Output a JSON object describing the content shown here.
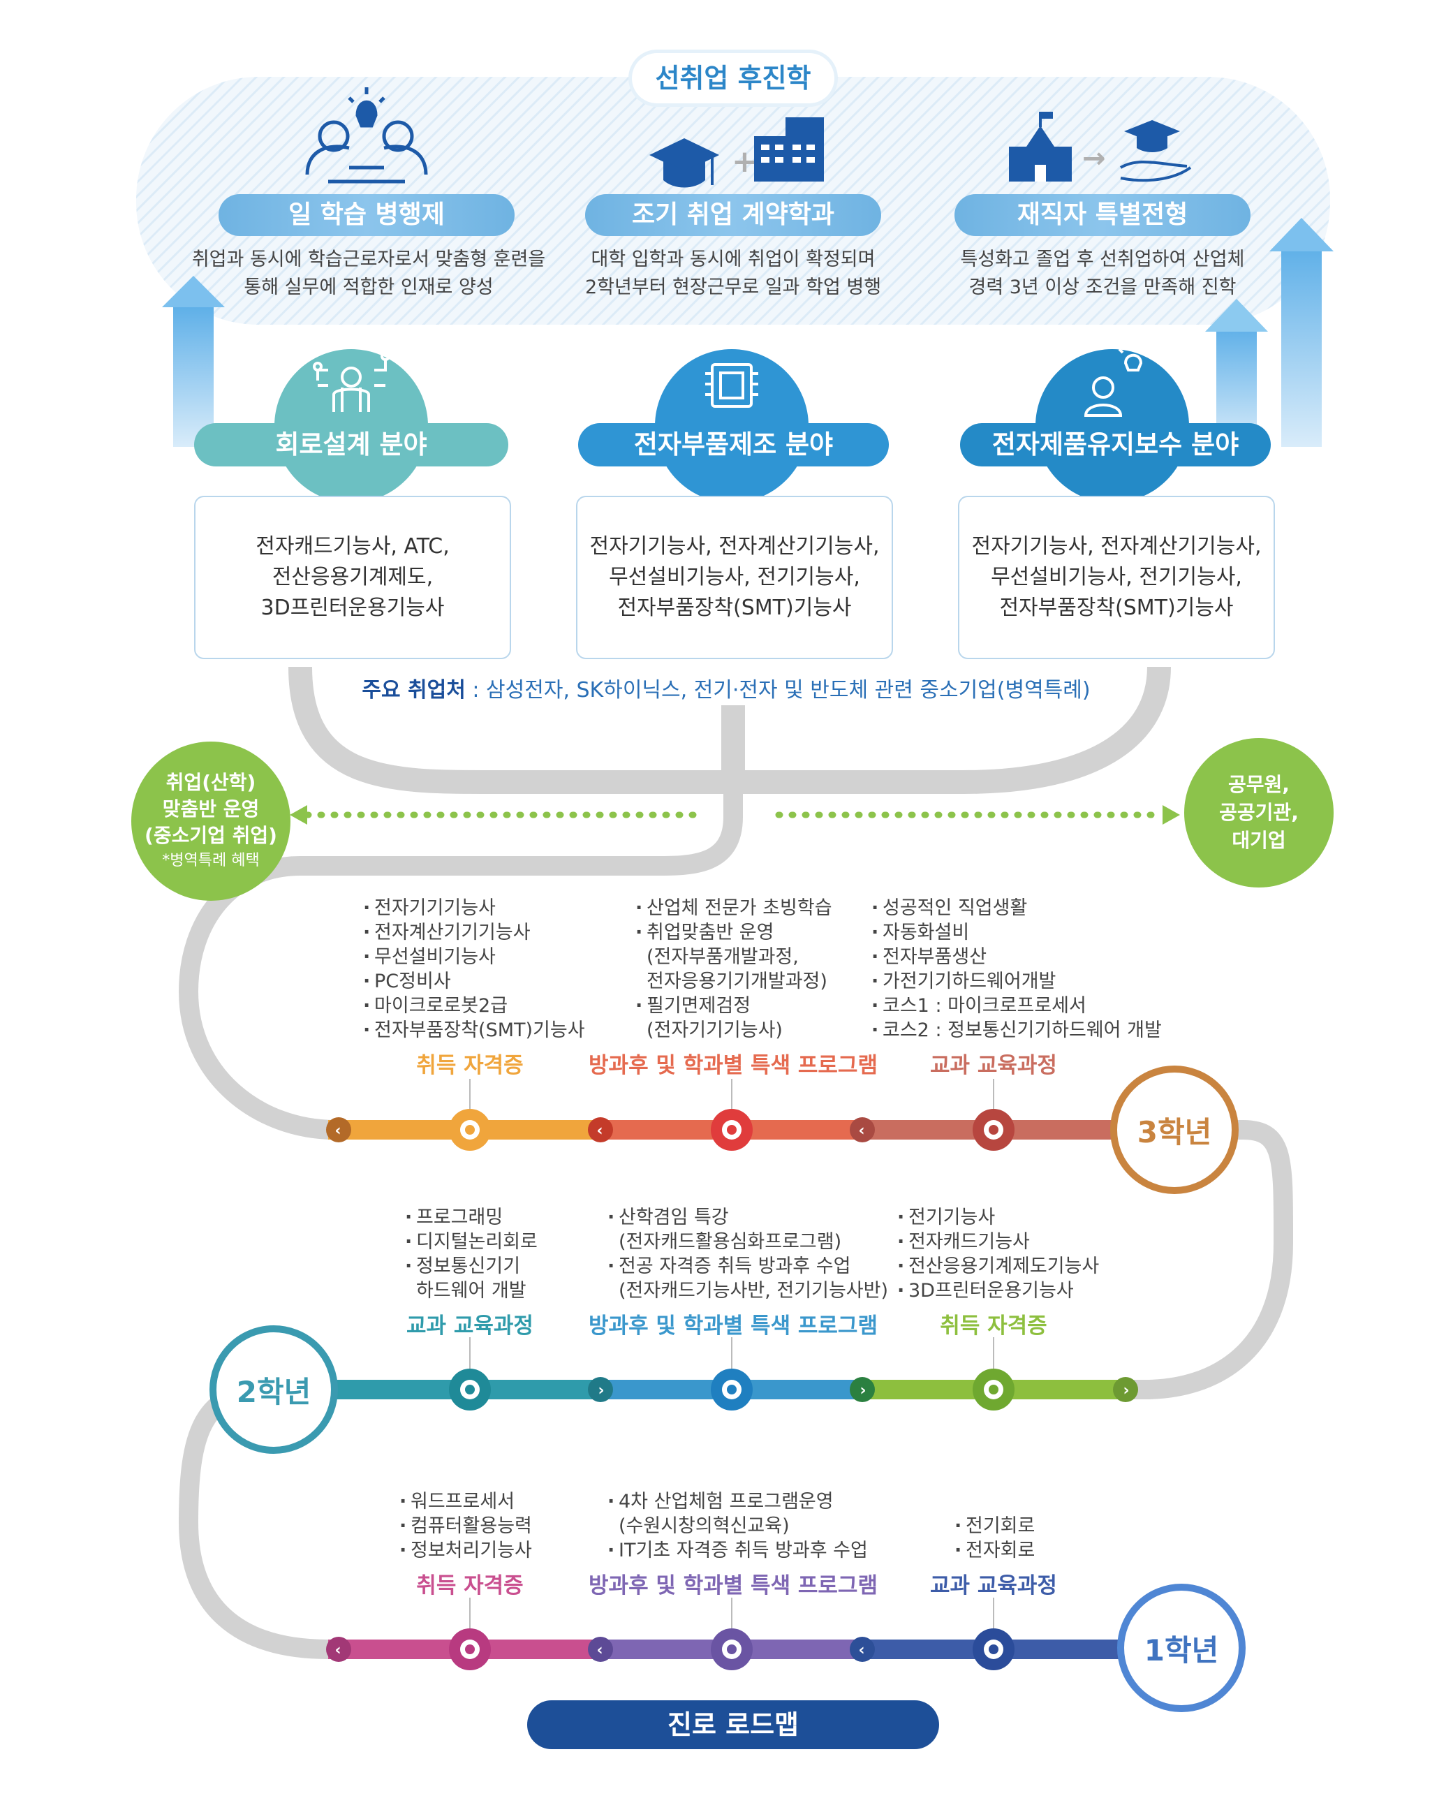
{
  "top": {
    "title": "선취업 후진학",
    "programs": [
      {
        "title": "일 학습 병행제",
        "desc": [
          "취업과 동시에 학습근로자로서 맞춤형 훈련을",
          "통해 실무에 적합한 인재로 양성"
        ],
        "icon": "idea-brain-icon"
      },
      {
        "title": "조기 취업 계약학과",
        "desc": [
          "대학 입학과 동시에 취업이 확정되며",
          "2학년부터 현장근무로 일과 학업 병행"
        ],
        "icon": "graduation-cap-plus-building-icon"
      },
      {
        "title": "재직자 특별전형",
        "desc": [
          "특성화고 졸업 후 선취업하여 산업체",
          "경력 3년 이상 조건을 만족해 진학"
        ],
        "icon": "school-to-graduation-icon"
      }
    ]
  },
  "fields": [
    {
      "title": "회로설계 분야",
      "color": "#6cc0c2",
      "icon": "circuit-person-icon",
      "certs": "전자캐드기능사,  ATC,\n전산응용기계제도,\n3D프린터운용기능사"
    },
    {
      "title": "전자부품제조 분야",
      "color": "#2f95d4",
      "icon": "chip-icon",
      "certs": "전자기기능사, 전자계산기기능사,\n무선설비기능사, 전기기능사,\n전자부품장착(SMT)기능사"
    },
    {
      "title": "전자제품유지보수 분야",
      "color": "#248ac7",
      "icon": "engineer-idea-icon",
      "certs": "전자기기능사, 전자계산기기능사,\n무선설비기능사, 전기기능사,\n전자부품장착(SMT)기능사"
    }
  ],
  "jobs": {
    "label": "주요 취업처",
    "text": " : 삼성전자, SK하이닉스, 전기·전자 및 반도체 관련 중소기업(병역특례)"
  },
  "left_destination": {
    "lines": [
      "취업(산학)",
      "맞춤반 운영",
      "(중소기업 취업)"
    ],
    "note": "*병역특례 혜택"
  },
  "right_destination": {
    "lines": [
      "공무원,",
      "공공기관,",
      "대기업"
    ]
  },
  "years": [
    {
      "label": "3학년",
      "color": "#c9843f",
      "sections": [
        {
          "title": "취득 자격증",
          "color": "#f0a53c",
          "items": [
            "전자기기기능사",
            "전자계산기기기능사",
            "무선설비기능사",
            "PC정비사",
            "마이크로로봇2급",
            "전자부품장착(SMT)기능사"
          ]
        },
        {
          "title": "방과후 및 학과별 특색 프로그램",
          "color": "#e56a4f",
          "items": [
            "산업체 전문가 초빙학습",
            "취업맞춤반 운영",
            "(전자부품개발과정,",
            "전자응용기기개발과정)",
            "필기면제검정",
            "(전자기기기능사)"
          ]
        },
        {
          "title": "교과 교육과정",
          "color": "#c96d5f",
          "items": [
            "성공적인 직업생활",
            "자동화설비",
            "전자부품생산",
            "가전기기하드웨어개발",
            "코스1 : 마이크로프로세서",
            "코스2 : 정보통신기기하드웨어 개발"
          ]
        }
      ]
    },
    {
      "label": "2학년",
      "color": "#3a9ab0",
      "sections": [
        {
          "title": "교과 교육과정",
          "color": "#2f9bab",
          "items": [
            "프로그래밍",
            "디지털논리회로",
            "정보통신기기",
            "하드웨어 개발"
          ]
        },
        {
          "title": "방과후 및 학과별 특색 프로그램",
          "color": "#3a97cc",
          "items": [
            "산학겸임 특강",
            "(전자캐드활용심화프로그램)",
            "전공 자격증 취득 방과후 수업",
            "(전자캐드기능사반, 전기기능사반)"
          ]
        },
        {
          "title": "취득 자격증",
          "color": "#8dbf3e",
          "items": [
            "전기기능사",
            "전자캐드기능사",
            "전산응용기계제도기능사",
            "3D프린터운용기능사"
          ]
        }
      ]
    },
    {
      "label": "1학년",
      "color": "#3f73c0",
      "sections": [
        {
          "title": "취득 자격증",
          "color": "#c94f8f",
          "items": [
            "워드프로세서",
            "컴퓨터활용능력",
            "정보처리기능사"
          ]
        },
        {
          "title": "방과후 및 학과별 특색 프로그램",
          "color": "#7e66b3",
          "items": [
            "4차 산업체험 프로그램운영",
            "(수원시창의혁신교육)",
            "IT기초 자격증 취득 방과후 수업"
          ]
        },
        {
          "title": "교과 교육과정",
          "color": "#3d5ca8",
          "items": [
            "전기회로",
            "전자회로"
          ]
        }
      ]
    }
  ],
  "roadmap_title": "진로 로드맵"
}
